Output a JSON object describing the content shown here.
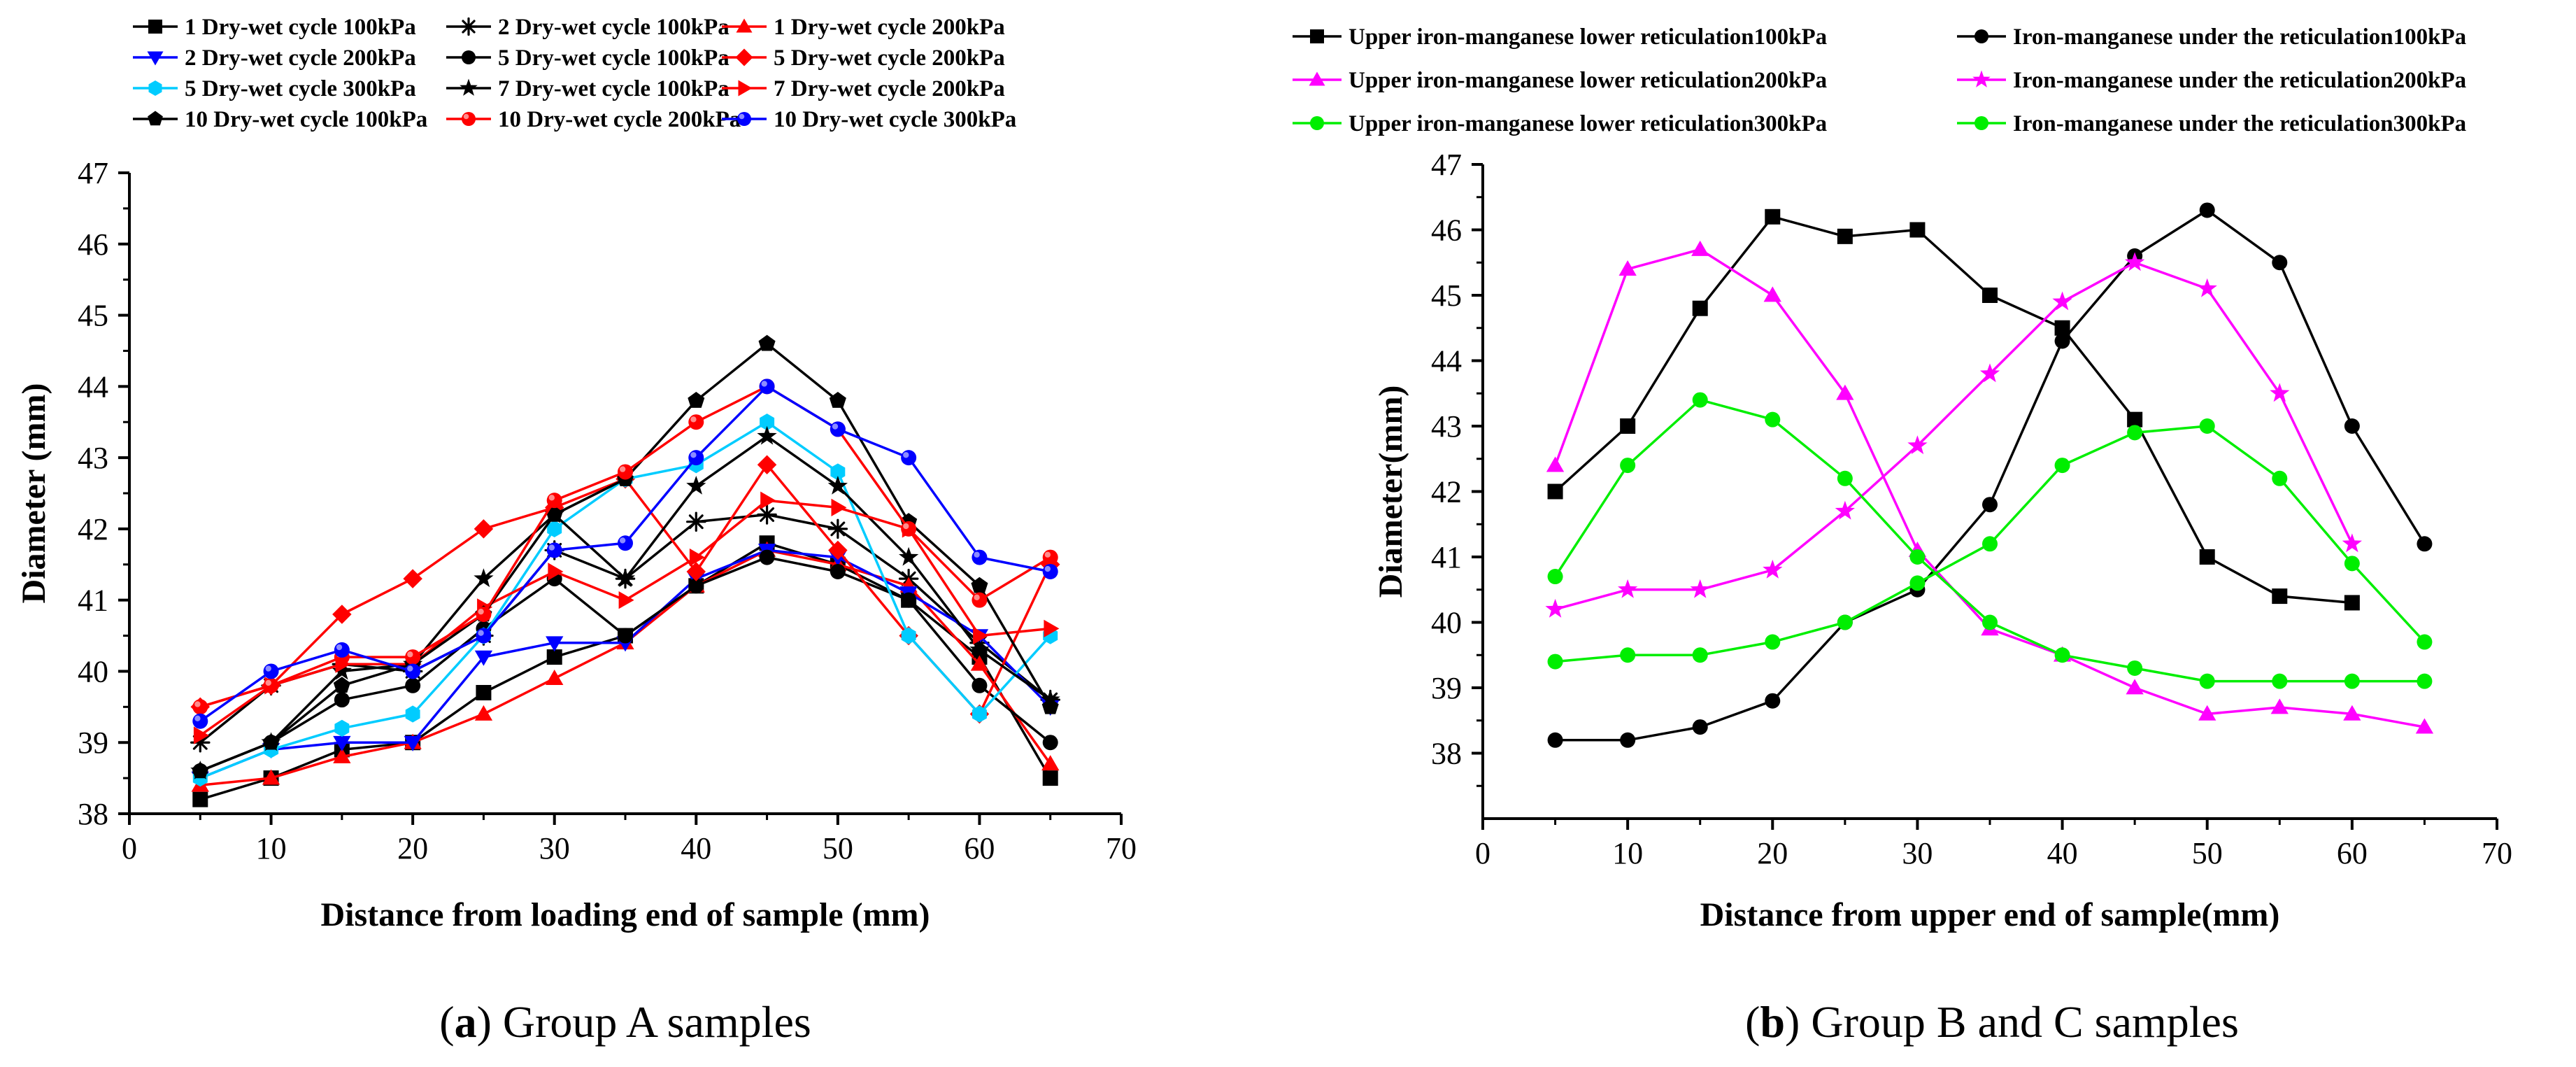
{
  "chart_data": [
    {
      "type": "line",
      "panel": "a",
      "caption_letter": "a",
      "caption_text": "Group A samples",
      "xlabel": "Distance from loading end of sample (mm)",
      "ylabel": "Diameter (mm)",
      "xlim": [
        0,
        70
      ],
      "ylim": [
        38,
        47
      ],
      "xticks": [
        0,
        10,
        20,
        30,
        40,
        50,
        60,
        70
      ],
      "yticks": [
        38,
        39,
        40,
        41,
        42,
        43,
        44,
        45,
        46,
        47
      ],
      "x": [
        5,
        10,
        15,
        20,
        25,
        30,
        35,
        40,
        45,
        50,
        55,
        60,
        65
      ],
      "legend_position": "top",
      "series": [
        {
          "name": "1 Dry-wet cycle 100kPa",
          "color": "#000000",
          "marker": "square",
          "values": [
            38.2,
            38.5,
            38.9,
            39.0,
            39.7,
            40.2,
            40.5,
            41.2,
            41.8,
            41.5,
            41.0,
            40.2,
            38.5
          ]
        },
        {
          "name": "2 Dry-wet cycle 100kPa",
          "color": "#000000",
          "marker": "asterisk",
          "values": [
            39.0,
            39.8,
            40.1,
            40.0,
            40.5,
            41.7,
            41.3,
            42.1,
            42.2,
            42.0,
            41.3,
            40.4,
            39.6
          ]
        },
        {
          "name": "1 Dry-wet cycle 200kPa",
          "color": "#FF0000",
          "marker": "triangle",
          "values": [
            38.4,
            38.5,
            38.8,
            39.0,
            39.4,
            39.9,
            40.4,
            41.2,
            41.7,
            41.5,
            41.2,
            40.1,
            38.7
          ]
        },
        {
          "name": "2 Dry-wet cycle 200kPa",
          "color": "#0000FF",
          "marker": "triangle-down",
          "values": [
            38.5,
            38.9,
            39.0,
            39.0,
            40.2,
            40.4,
            40.4,
            41.3,
            41.7,
            41.6,
            41.1,
            40.5,
            39.5
          ]
        },
        {
          "name": "5 Dry-wet cycle 100kPa",
          "color": "#000000",
          "marker": "circle",
          "values": [
            38.6,
            39.0,
            39.6,
            39.8,
            40.6,
            41.3,
            40.5,
            41.2,
            41.6,
            41.4,
            41.0,
            39.8,
            39.0
          ]
        },
        {
          "name": "5 Dry-wet cycle 200kPa",
          "color": "#FF0000",
          "marker": "diamond",
          "values": [
            39.5,
            39.8,
            40.8,
            41.3,
            42.0,
            42.3,
            42.7,
            41.4,
            42.9,
            41.7,
            40.5,
            39.4,
            41.5
          ]
        },
        {
          "name": "5 Dry-wet cycle 300kPa",
          "color": "#00CCFF",
          "marker": "hexagon",
          "values": [
            38.5,
            38.9,
            39.2,
            39.4,
            40.5,
            42.0,
            42.7,
            42.9,
            43.5,
            42.8,
            40.5,
            39.4,
            40.5
          ]
        },
        {
          "name": "7 Dry-wet cycle 100kPa",
          "color": "#000000",
          "marker": "star",
          "values": [
            38.6,
            39.0,
            40.0,
            40.1,
            41.3,
            42.2,
            41.3,
            42.6,
            43.3,
            42.6,
            41.6,
            40.3,
            39.6
          ]
        },
        {
          "name": "7 Dry-wet cycle 200kPa",
          "color": "#FF0000",
          "marker": "triangle-right",
          "values": [
            39.1,
            39.8,
            40.1,
            40.1,
            40.9,
            41.4,
            41.0,
            41.6,
            42.4,
            42.3,
            42.0,
            40.5,
            40.6
          ]
        },
        {
          "name": "10 Dry-wet cycle 100kPa",
          "color": "#000000",
          "marker": "pentagon",
          "values": [
            38.6,
            39.0,
            39.8,
            40.1,
            40.8,
            42.2,
            42.7,
            43.8,
            44.6,
            43.8,
            42.1,
            41.2,
            39.5
          ]
        },
        {
          "name": "10 Dry-wet cycle 200kPa",
          "color": "#FF0000",
          "marker": "circle-shaded",
          "values": [
            39.5,
            39.8,
            40.2,
            40.2,
            40.8,
            42.4,
            42.8,
            43.5,
            44.0,
            43.4,
            42.0,
            41.0,
            41.6
          ]
        },
        {
          "name": "10 Dry-wet cycle 300kPa",
          "color": "#0000FF",
          "marker": "circle-shaded",
          "values": [
            39.3,
            40.0,
            40.3,
            40.0,
            40.5,
            41.7,
            41.8,
            43.0,
            44.0,
            43.4,
            43.0,
            41.6,
            41.4
          ]
        }
      ]
    },
    {
      "type": "line",
      "panel": "b",
      "caption_letter": "b",
      "caption_text": "Group B and C samples",
      "xlabel": "Distance from upper end of sample(mm)",
      "ylabel": "Diameter(mm)",
      "xlim": [
        0,
        70
      ],
      "ylim": [
        37,
        47
      ],
      "xticks": [
        0,
        10,
        20,
        30,
        40,
        50,
        60,
        70
      ],
      "yticks": [
        38,
        39,
        40,
        41,
        42,
        43,
        44,
        45,
        46,
        47
      ],
      "legend_position": "top",
      "series": [
        {
          "name": "Upper iron-manganese lower reticulation100kPa",
          "color": "#000000",
          "marker": "square",
          "x": [
            5,
            10,
            15,
            20,
            25,
            30,
            35,
            40,
            45,
            50,
            55,
            60
          ],
          "values": [
            42.0,
            43.0,
            44.8,
            46.2,
            45.9,
            46.0,
            45.0,
            44.5,
            43.1,
            41.0,
            40.4,
            40.3
          ]
        },
        {
          "name": "Iron-manganese under the reticulation100kPa",
          "color": "#000000",
          "marker": "circle",
          "x": [
            5,
            10,
            15,
            20,
            25,
            30,
            35,
            40,
            45,
            50,
            55,
            60,
            65
          ],
          "values": [
            38.2,
            38.2,
            38.4,
            38.8,
            40.0,
            40.5,
            41.8,
            44.3,
            45.6,
            46.3,
            45.5,
            43.0,
            41.2
          ]
        },
        {
          "name": "Upper iron-manganese lower reticulation200kPa",
          "color": "#FF00FF",
          "marker": "triangle",
          "x": [
            5,
            10,
            15,
            20,
            25,
            30,
            35,
            40,
            45,
            50,
            55,
            60,
            65
          ],
          "values": [
            42.4,
            45.4,
            45.7,
            45.0,
            43.5,
            41.1,
            39.9,
            39.5,
            39.0,
            38.6,
            38.7,
            38.6,
            38.4
          ]
        },
        {
          "name": "Iron-manganese under the reticulation200kPa",
          "color": "#FF00FF",
          "marker": "star",
          "x": [
            5,
            10,
            15,
            20,
            25,
            30,
            35,
            40,
            45,
            50,
            55,
            60
          ],
          "values": [
            40.2,
            40.5,
            40.5,
            40.8,
            41.7,
            42.7,
            43.8,
            44.9,
            45.5,
            45.1,
            43.5,
            41.2
          ]
        },
        {
          "name": "Upper iron-manganese lower reticulation300kPa",
          "color": "#00EE00",
          "marker": "circle",
          "x": [
            5,
            10,
            15,
            20,
            25,
            30,
            35,
            40,
            45,
            50,
            55,
            60,
            65
          ],
          "values": [
            40.7,
            42.4,
            43.4,
            43.1,
            42.2,
            41.0,
            40.0,
            39.5,
            39.3,
            39.1,
            39.1,
            39.1,
            39.1
          ]
        },
        {
          "name": "Iron-manganese under the reticulation300kPa",
          "color": "#00EE00",
          "marker": "circle",
          "x": [
            5,
            10,
            15,
            20,
            25,
            30,
            35,
            40,
            45,
            50,
            55,
            60,
            65
          ],
          "values": [
            39.4,
            39.5,
            39.5,
            39.7,
            40.0,
            40.6,
            41.2,
            42.4,
            42.9,
            43.0,
            42.2,
            40.9,
            39.7
          ]
        }
      ]
    }
  ]
}
